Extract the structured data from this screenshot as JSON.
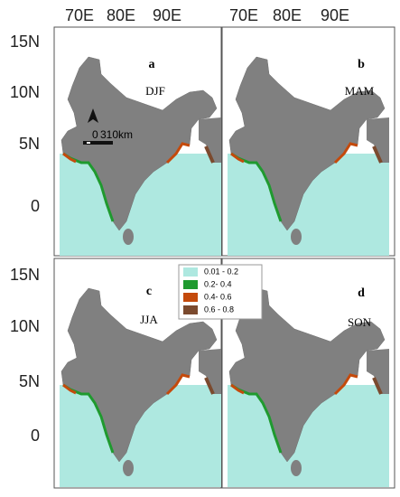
{
  "top_labels": [
    [
      "70E",
      "80E",
      "90E"
    ],
    [
      "70E",
      "80E",
      "90E"
    ]
  ],
  "left_labels": [
    [
      "15N",
      "10N",
      "5N",
      "0"
    ],
    [
      "15N",
      "10N",
      "5N",
      "0"
    ]
  ],
  "panels": [
    {
      "letter": "a",
      "season": "DJF"
    },
    {
      "letter": "b",
      "season": "MAM"
    },
    {
      "letter": "c",
      "season": "JJA"
    },
    {
      "letter": "d",
      "season": "SON"
    }
  ],
  "scale": {
    "start": "0",
    "end": "310km"
  },
  "legend": [
    {
      "label": "0.01 - 0.2",
      "color": "#aee8e0"
    },
    {
      "label": "0.2- 0.4",
      "color": "#1f9a2f"
    },
    {
      "label": "0.4- 0.6",
      "color": "#c44a0c"
    },
    {
      "label": "0.6 - 0.8",
      "color": "#7b4a2e"
    }
  ]
}
